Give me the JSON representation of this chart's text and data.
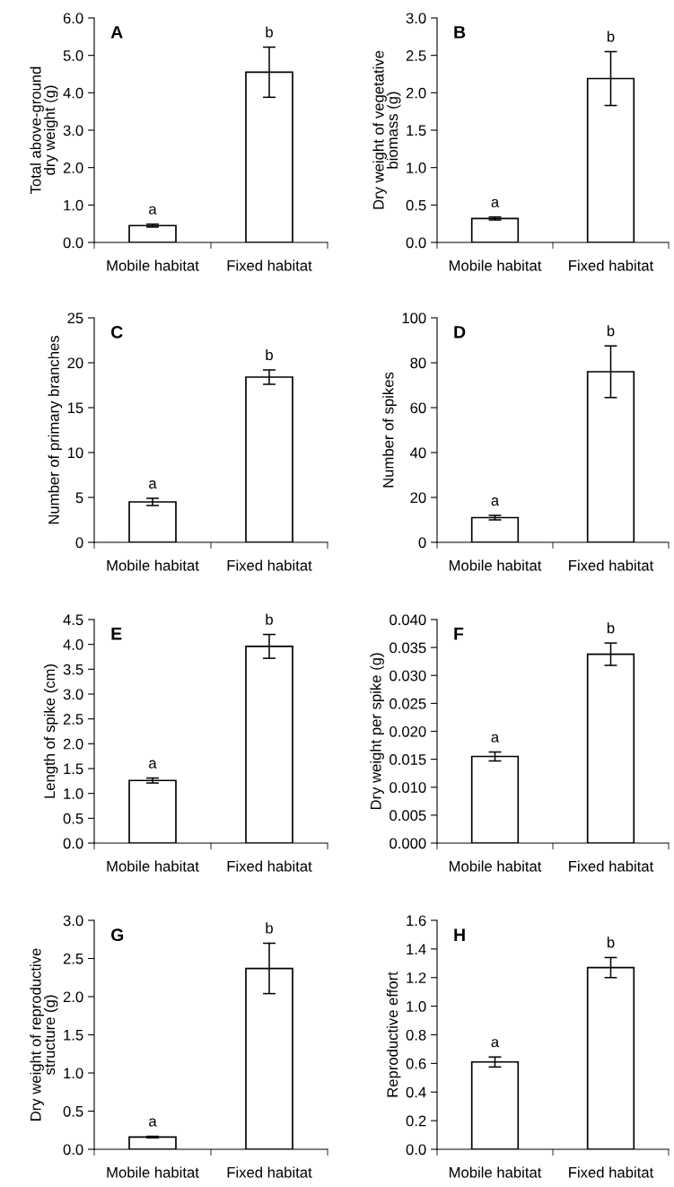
{
  "chart_data": [
    {
      "type": "bar",
      "title": "A",
      "ylabel": "Total above-ground\ndry weight (g)",
      "categories": [
        "Mobile habitat",
        "Fixed habitat"
      ],
      "values": [
        0.45,
        4.55
      ],
      "errors": [
        0.04,
        0.67
      ],
      "color": "#ffffff",
      "ylim": [
        0,
        6
      ],
      "yticks": [
        {
          "value": 0,
          "label": "0.0"
        },
        {
          "value": 1,
          "label": "1.0"
        },
        {
          "value": 2,
          "label": "2.0"
        },
        {
          "value": 3,
          "label": "3.0"
        },
        {
          "value": 4,
          "label": "4.0"
        },
        {
          "value": 5,
          "label": "5.0"
        },
        {
          "value": 6,
          "label": "6.0"
        }
      ],
      "annotations": [
        "a",
        "b"
      ],
      "grid": false,
      "legend": false
    },
    {
      "type": "bar",
      "title": "B",
      "ylabel": "Dry weight of vegetative\nbiomass (g)",
      "categories": [
        "Mobile habitat",
        "Fixed habitat"
      ],
      "values": [
        0.32,
        2.19
      ],
      "errors": [
        0.02,
        0.36
      ],
      "color": "#ffffff",
      "ylim": [
        0,
        3
      ],
      "yticks": [
        {
          "value": 0,
          "label": "0.0"
        },
        0.5,
        {
          "value": 1,
          "label": "1.0"
        },
        1.5,
        {
          "value": 2,
          "label": "2.0"
        },
        2.5,
        {
          "value": 3,
          "label": "3.0"
        }
      ],
      "annotations": [
        "a",
        "b"
      ],
      "grid": false,
      "legend": false
    },
    {
      "type": "bar",
      "title": "C",
      "ylabel": "Number of primary branches",
      "categories": [
        "Mobile habitat",
        "Fixed habitat"
      ],
      "values": [
        4.5,
        18.4
      ],
      "errors": [
        0.4,
        0.8
      ],
      "color": "#ffffff",
      "ylim": [
        0,
        25
      ],
      "yticks": [
        0,
        5,
        10,
        15,
        20,
        25
      ],
      "annotations": [
        "a",
        "b"
      ],
      "grid": false,
      "legend": false
    },
    {
      "type": "bar",
      "title": "D",
      "ylabel": "Number of spikes",
      "categories": [
        "Mobile habitat",
        "Fixed habitat"
      ],
      "values": [
        11,
        76
      ],
      "errors": [
        1,
        11.5
      ],
      "color": "#ffffff",
      "ylim": [
        0,
        100
      ],
      "yticks": [
        0,
        20,
        40,
        60,
        80,
        100
      ],
      "annotations": [
        "a",
        "b"
      ],
      "grid": false,
      "legend": false
    },
    {
      "type": "bar",
      "title": "E",
      "ylabel": "Length of spike (cm)",
      "categories": [
        "Mobile habitat",
        "Fixed habitat"
      ],
      "values": [
        1.26,
        3.96
      ],
      "errors": [
        0.05,
        0.24
      ],
      "color": "#ffffff",
      "ylim": [
        0,
        4.5
      ],
      "yticks": [
        {
          "value": 0,
          "label": "0.0"
        },
        0.5,
        {
          "value": 1,
          "label": "1.0"
        },
        1.5,
        {
          "value": 2,
          "label": "2.0"
        },
        2.5,
        {
          "value": 3,
          "label": "3.0"
        },
        3.5,
        {
          "value": 4,
          "label": "4.0"
        },
        4.5
      ],
      "annotations": [
        "a",
        "b"
      ],
      "grid": false,
      "legend": false
    },
    {
      "type": "bar",
      "title": "F",
      "ylabel": "Dry weight per spike (g)",
      "categories": [
        "Mobile habitat",
        "Fixed habitat"
      ],
      "values": [
        0.0155,
        0.0338
      ],
      "errors": [
        0.0008,
        0.002
      ],
      "color": "#ffffff",
      "ylim": [
        0,
        0.04
      ],
      "yticks": [
        {
          "value": 0,
          "label": "0.000"
        },
        {
          "value": 0.005,
          "label": "0.005"
        },
        {
          "value": 0.01,
          "label": "0.010"
        },
        {
          "value": 0.015,
          "label": "0.015"
        },
        {
          "value": 0.02,
          "label": "0.020"
        },
        {
          "value": 0.025,
          "label": "0.025"
        },
        {
          "value": 0.03,
          "label": "0.030"
        },
        {
          "value": 0.035,
          "label": "0.035"
        },
        {
          "value": 0.04,
          "label": "0.040"
        }
      ],
      "annotations": [
        "a",
        "b"
      ],
      "grid": false,
      "legend": false
    },
    {
      "type": "bar",
      "title": "G",
      "ylabel": "Dry weight of reproductive\nstructure (g)",
      "categories": [
        "Mobile habitat",
        "Fixed habitat"
      ],
      "values": [
        0.16,
        2.37
      ],
      "errors": [
        0.01,
        0.33
      ],
      "color": "#ffffff",
      "ylim": [
        0,
        3
      ],
      "yticks": [
        {
          "value": 0,
          "label": "0.0"
        },
        0.5,
        {
          "value": 1,
          "label": "1.0"
        },
        1.5,
        {
          "value": 2,
          "label": "2.0"
        },
        2.5,
        {
          "value": 3,
          "label": "3.0"
        }
      ],
      "annotations": [
        "a",
        "b"
      ],
      "grid": false,
      "legend": false
    },
    {
      "type": "bar",
      "title": "H",
      "ylabel": "Reproductive effort",
      "categories": [
        "Mobile habitat",
        "Fixed habitat"
      ],
      "values": [
        0.61,
        1.27
      ],
      "errors": [
        0.035,
        0.07
      ],
      "color": "#ffffff",
      "ylim": [
        0,
        1.6
      ],
      "yticks": [
        {
          "value": 0,
          "label": "0.0"
        },
        0.2,
        0.4,
        0.6,
        0.8,
        {
          "value": 1,
          "label": "1.0"
        },
        1.2,
        1.4,
        1.6
      ],
      "annotations": [
        "a",
        "b"
      ],
      "grid": false,
      "legend": false
    }
  ]
}
